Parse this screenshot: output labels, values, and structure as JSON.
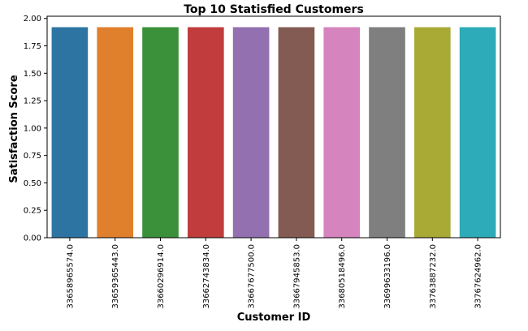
{
  "chart_data": {
    "type": "bar",
    "title": "Top 10 Statisfied Customers",
    "xlabel": "Customer ID",
    "ylabel": "Satisfaction Score",
    "categories": [
      "33658965574.0",
      "33659365443.0",
      "33660296914.0",
      "33662743834.0",
      "33667677500.0",
      "33667945853.0",
      "33680518496.0",
      "33699633196.0",
      "33763887232.0",
      "33767624962.0"
    ],
    "values": [
      1.92,
      1.92,
      1.92,
      1.92,
      1.92,
      1.92,
      1.92,
      1.92,
      1.92,
      1.92
    ],
    "colors": [
      "#2e74a3",
      "#e07f2c",
      "#3a913a",
      "#c03c3d",
      "#9370b0",
      "#845b53",
      "#d684bd",
      "#7f7f7f",
      "#a9aa35",
      "#2eabb8"
    ],
    "yticks": [
      "0.00",
      "0.25",
      "0.50",
      "0.75",
      "1.00",
      "1.25",
      "1.50",
      "1.75",
      "2.00"
    ],
    "ylim": [
      0,
      2.02
    ],
    "grid": false,
    "legend": "none"
  }
}
